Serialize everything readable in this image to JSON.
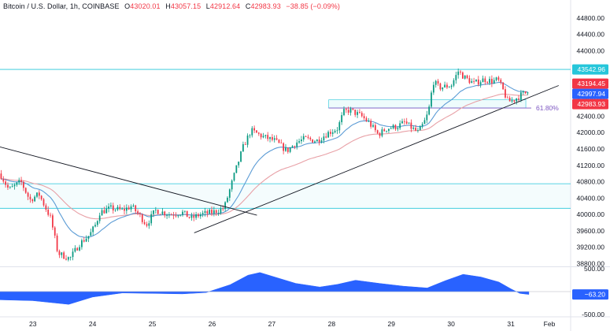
{
  "legend": {
    "symbol": "Bitcoin / U.S. Dollar, 1h, COINBASE",
    "open_label": "O",
    "open": "43020.01",
    "high_label": "H",
    "high": "43057.15",
    "low_label": "L",
    "low": "42912.64",
    "close_label": "C",
    "close": "42983.93",
    "change": "−38.85 (−0.09%)"
  },
  "colors": {
    "up": "#089981",
    "down": "#f23645",
    "ma_fast": "#5b9bd5",
    "ma_slow": "#e8a0a6",
    "zone_line": "#26c6da",
    "oscillator": "#2962ff",
    "fib": "#7e57c2",
    "trendline": "#131722"
  },
  "price_tags": [
    {
      "value": "43542.96",
      "color": "#26c6da"
    },
    {
      "value": "43194.45",
      "color": "#f23645"
    },
    {
      "value": "42997.94",
      "color": "#2962ff"
    },
    {
      "value": "42983.93",
      "color": "#f23645"
    }
  ],
  "fib_label": "61.80%",
  "oscillator_tag": "−63.20",
  "chart_data": {
    "type": "candlestick",
    "title": "Bitcoin / U.S. Dollar, 1h, COINBASE",
    "x_ticks": [
      "23",
      "24",
      "25",
      "26",
      "27",
      "28",
      "29",
      "30",
      "31",
      "Feb"
    ],
    "y_ticks": [
      44800,
      44400,
      44000,
      43600,
      43200,
      42800,
      42400,
      42000,
      41600,
      41200,
      40800,
      40400,
      40000,
      39600,
      39200,
      38800
    ],
    "ylim": [
      38750,
      44950
    ],
    "xlim": [
      22.45,
      32.0
    ],
    "osc_ticks": [
      500,
      -500
    ],
    "osc_tick_labels": [
      "500.00",
      "-500.00"
    ],
    "osc_range": [
      -520,
      520
    ],
    "zones": [
      {
        "from": 40150,
        "to": 40750
      }
    ],
    "horizontal_lines": [
      43542.96
    ],
    "fib_box": {
      "x0": 27.95,
      "x1": 31.25,
      "top": 42800,
      "bottom": 42600
    },
    "trendlines": [
      {
        "x0": 22.45,
        "y0": 41650,
        "x1": 26.75,
        "y1": 39980
      },
      {
        "x0": 25.7,
        "y0": 39550,
        "x1": 31.8,
        "y1": 43150
      }
    ],
    "anchors": [
      [
        22.45,
        41000
      ],
      [
        22.6,
        40600
      ],
      [
        22.8,
        40800
      ],
      [
        22.95,
        40350
      ],
      [
        23.1,
        40500
      ],
      [
        23.3,
        39900
      ],
      [
        23.42,
        39050
      ],
      [
        23.62,
        38920
      ],
      [
        23.78,
        39280
      ],
      [
        23.95,
        39500
      ],
      [
        24.05,
        39750
      ],
      [
        24.12,
        40050
      ],
      [
        24.3,
        40150
      ],
      [
        24.5,
        40100
      ],
      [
        24.65,
        40200
      ],
      [
        24.8,
        39950
      ],
      [
        24.9,
        39750
      ],
      [
        25.05,
        40100
      ],
      [
        25.3,
        40000
      ],
      [
        25.5,
        40050
      ],
      [
        25.65,
        39900
      ],
      [
        25.8,
        40000
      ],
      [
        26.0,
        40050
      ],
      [
        26.2,
        40150
      ],
      [
        26.42,
        41200
      ],
      [
        26.52,
        41650
      ],
      [
        26.65,
        42050
      ],
      [
        26.85,
        41900
      ],
      [
        27.05,
        41800
      ],
      [
        27.25,
        41550
      ],
      [
        27.4,
        41750
      ],
      [
        27.55,
        41850
      ],
      [
        27.75,
        41800
      ],
      [
        27.95,
        42000
      ],
      [
        28.1,
        42100
      ],
      [
        28.2,
        42500
      ],
      [
        28.3,
        42550
      ],
      [
        28.5,
        42400
      ],
      [
        28.62,
        42250
      ],
      [
        28.78,
        41950
      ],
      [
        28.92,
        42100
      ],
      [
        29.1,
        42150
      ],
      [
        29.22,
        42250
      ],
      [
        29.35,
        42100
      ],
      [
        29.45,
        42000
      ],
      [
        29.55,
        42250
      ],
      [
        29.62,
        42500
      ],
      [
        29.7,
        43250
      ],
      [
        29.8,
        43100
      ],
      [
        30.0,
        43150
      ],
      [
        30.12,
        43500
      ],
      [
        30.22,
        43350
      ],
      [
        30.38,
        43200
      ],
      [
        30.55,
        43300
      ],
      [
        30.7,
        43250
      ],
      [
        30.78,
        43300
      ],
      [
        30.88,
        43000
      ],
      [
        30.95,
        42750
      ],
      [
        31.05,
        42800
      ],
      [
        31.2,
        42950
      ],
      [
        31.3,
        42984
      ]
    ],
    "oscillator": [
      [
        22.45,
        -180
      ],
      [
        23.0,
        -200
      ],
      [
        23.6,
        -280
      ],
      [
        24.0,
        -120
      ],
      [
        24.5,
        -30
      ],
      [
        25.0,
        -40
      ],
      [
        25.5,
        -50
      ],
      [
        25.9,
        -20
      ],
      [
        26.3,
        150
      ],
      [
        26.6,
        360
      ],
      [
        26.8,
        420
      ],
      [
        27.1,
        300
      ],
      [
        27.4,
        180
      ],
      [
        27.8,
        100
      ],
      [
        28.1,
        160
      ],
      [
        28.4,
        250
      ],
      [
        28.8,
        180
      ],
      [
        29.2,
        120
      ],
      [
        29.6,
        80
      ],
      [
        29.9,
        240
      ],
      [
        30.2,
        380
      ],
      [
        30.5,
        320
      ],
      [
        30.8,
        210
      ],
      [
        31.0,
        60
      ],
      [
        31.15,
        -40
      ],
      [
        31.3,
        -63.2
      ]
    ]
  }
}
